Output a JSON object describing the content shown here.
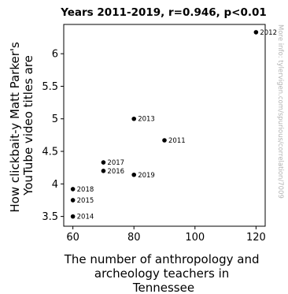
{
  "chart_data": {
    "type": "scatter",
    "title": "Years 2011-2019, r=0.946, p<0.01",
    "xlabel_lines": [
      "The number of anthropology and",
      "archeology teachers in",
      "Tennessee"
    ],
    "ylabel_lines": [
      "How clickbait-y Matt Parker's",
      "YouTube video titles are"
    ],
    "xlim": [
      57,
      123
    ],
    "ylim": [
      3.35,
      6.45
    ],
    "xticks": [
      60,
      80,
      100,
      120
    ],
    "yticks": [
      3.5,
      4,
      4.5,
      5,
      5.5,
      6
    ],
    "ytick_labels": [
      "3.5",
      "4",
      "4.5",
      "5",
      "5.5",
      "6"
    ],
    "grid": false,
    "points": [
      {
        "label": "2011",
        "x": 90,
        "y": 4.67
      },
      {
        "label": "2012",
        "x": 120,
        "y": 6.33
      },
      {
        "label": "2013",
        "x": 80,
        "y": 5.0
      },
      {
        "label": "2014",
        "x": 60,
        "y": 3.5
      },
      {
        "label": "2015",
        "x": 60,
        "y": 3.75
      },
      {
        "label": "2016",
        "x": 70,
        "y": 4.2
      },
      {
        "label": "2017",
        "x": 70,
        "y": 4.33
      },
      {
        "label": "2018",
        "x": 60,
        "y": 3.92
      },
      {
        "label": "2019",
        "x": 80,
        "y": 4.14
      }
    ],
    "point_color": "#000000",
    "side_note": "More info: tylervigen.com/spurious/correlation/7009"
  }
}
